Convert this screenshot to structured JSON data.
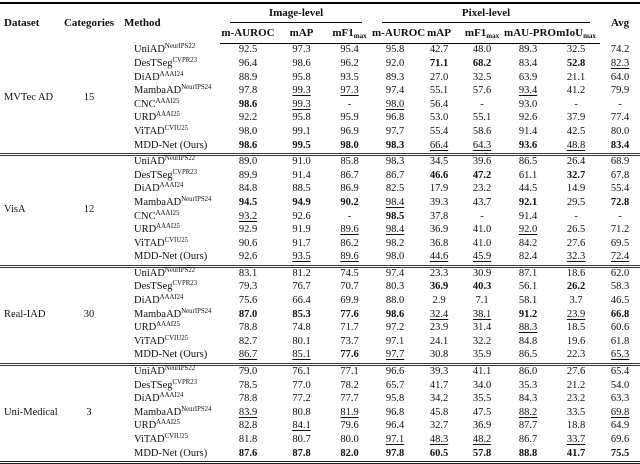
{
  "header": {
    "dataset": "Dataset",
    "categories": "Categories",
    "method": "Method",
    "avg": "Avg",
    "groups": [
      {
        "label": "Image-level"
      },
      {
        "label": "Pixel-level"
      }
    ],
    "sub": [
      {
        "base": "m-AUROC",
        "sub": ""
      },
      {
        "base": "mAP",
        "sub": ""
      },
      {
        "base": "mF1",
        "sub": "max"
      },
      {
        "base": "m-AUROC",
        "sub": ""
      },
      {
        "base": "mAP",
        "sub": ""
      },
      {
        "base": "mF1",
        "sub": "max"
      },
      {
        "base": "mAU-PRO",
        "sub": ""
      },
      {
        "base": "mIoU",
        "sub": "max"
      }
    ]
  },
  "legend": {
    "bold_means": "best result",
    "underline_means": "second-best result"
  },
  "sections": [
    {
      "dataset": "MVTec AD",
      "categories": "15",
      "rows": [
        {
          "method": "UniAD",
          "venue": "NeurIPS22",
          "cells": [
            "92.5",
            "97.3",
            "95.4",
            "95.8",
            "42.7",
            "48.0",
            "89.3",
            "32.5",
            "74.2"
          ]
        },
        {
          "method": "DesTSeg",
          "venue": "CVPR23",
          "cells": [
            "96.4",
            "98.6",
            "96.2",
            "92.0",
            "b:71.1",
            "b:68.2",
            "83.4",
            "b:52.8",
            "u:82.3"
          ]
        },
        {
          "method": "DiAD",
          "venue": "AAAI24",
          "cells": [
            "88.9",
            "95.8",
            "93.5",
            "89.3",
            "27.0",
            "32.5",
            "63.9",
            "21.1",
            "64.0"
          ]
        },
        {
          "method": "MambaAD",
          "venue": "NeurIPS24",
          "cells": [
            "97.8",
            "u:99.3",
            "u:97.3",
            "97.4",
            "55.1",
            "57.6",
            "u:93.4",
            "41.2",
            "79.9"
          ]
        },
        {
          "method": "CNC",
          "venue": "AAAI25",
          "cells": [
            "b:98.6",
            "u:99.3",
            "-",
            "u:98.0",
            "56.4",
            "-",
            "93.0",
            "-",
            "-"
          ]
        },
        {
          "method": "URD",
          "venue": "AAAI25",
          "cells": [
            "92.2",
            "95.8",
            "95.9",
            "96.8",
            "53.0",
            "55.1",
            "92.6",
            "37.9",
            "77.4"
          ]
        },
        {
          "method": "ViTAD",
          "venue": "CVIU25",
          "cells": [
            "98.0",
            "99.1",
            "96.9",
            "97.7",
            "55.4",
            "58.6",
            "91.4",
            "42.5",
            "80.0"
          ]
        },
        {
          "method": "MDD-Net (Ours)",
          "venue": "",
          "cells": [
            "b:98.6",
            "b:99.5",
            "b:98.0",
            "b:98.3",
            "u:66.4",
            "u:64.3",
            "b:93.6",
            "u:48.8",
            "b:83.4"
          ]
        }
      ]
    },
    {
      "dataset": "VisA",
      "categories": "12",
      "rows": [
        {
          "method": "UniAD",
          "venue": "NeurIPS22",
          "cells": [
            "89.0",
            "91.0",
            "85.8",
            "98.3",
            "34.5",
            "39.6",
            "86.5",
            "26.4",
            "68.9"
          ]
        },
        {
          "method": "DesTSeg",
          "venue": "CVPR23",
          "cells": [
            "89.9",
            "91.4",
            "86.7",
            "86.7",
            "b:46.6",
            "b:47.2",
            "61.1",
            "b:32.7",
            "67.8"
          ]
        },
        {
          "method": "DiAD",
          "venue": "AAAI24",
          "cells": [
            "84.8",
            "88.5",
            "86.9",
            "82.5",
            "17.9",
            "23.2",
            "44.5",
            "14.9",
            "55.4"
          ]
        },
        {
          "method": "MambaAD",
          "venue": "NeurIPS24",
          "cells": [
            "b:94.5",
            "b:94.9",
            "b:90.2",
            "u:98.4",
            "39.3",
            "43.7",
            "b:92.1",
            "29.5",
            "b:72.8"
          ]
        },
        {
          "method": "CNC",
          "venue": "AAAI25",
          "cells": [
            "u:93.2",
            "92.6",
            "-",
            "b:98.5",
            "37.8",
            "-",
            "91.4",
            "-",
            "-"
          ]
        },
        {
          "method": "URD",
          "venue": "AAAI25",
          "cells": [
            "92.9",
            "91.9",
            "u:89.6",
            "u:98.4",
            "36.9",
            "41.0",
            "u:92.0",
            "26.5",
            "71.2"
          ]
        },
        {
          "method": "ViTAD",
          "venue": "CVIU25",
          "cells": [
            "90.6",
            "91.7",
            "86.2",
            "98.2",
            "36.8",
            "41.0",
            "84.2",
            "27.6",
            "69.5"
          ]
        },
        {
          "method": "MDD-Net (Ours)",
          "venue": "",
          "cells": [
            "92.6",
            "u:93.5",
            "u:89.6",
            "98.0",
            "u:44.6",
            "u:45.9",
            "82.4",
            "u:32.3",
            "u:72.4"
          ]
        }
      ]
    },
    {
      "dataset": "Real-IAD",
      "categories": "30",
      "rows": [
        {
          "method": "UniAD",
          "venue": "NeurIPS22",
          "cells": [
            "83.1",
            "81.2",
            "74.5",
            "97.4",
            "23.3",
            "30.9",
            "87.1",
            "18.6",
            "62.0"
          ]
        },
        {
          "method": "DesTSeg",
          "venue": "CVPR23",
          "cells": [
            "79.3",
            "76.7",
            "70.7",
            "80.3",
            "b:36.9",
            "b:40.3",
            "56.1",
            "b:26.2",
            "58.3"
          ]
        },
        {
          "method": "DiAD",
          "venue": "AAAI24",
          "cells": [
            "75.6",
            "66.4",
            "69.9",
            "88.0",
            "2.9",
            "7.1",
            "58.1",
            "3.7",
            "46.5"
          ]
        },
        {
          "method": "MambaAD",
          "venue": "NeurIPS24",
          "cells": [
            "b:87.0",
            "b:85.3",
            "b:77.6",
            "b:98.6",
            "u:32.4",
            "u:38.1",
            "b:91.2",
            "u:23.9",
            "b:66.8"
          ]
        },
        {
          "method": "URD",
          "venue": "AAAI25",
          "cells": [
            "78.8",
            "74.8",
            "71.7",
            "97.2",
            "23.9",
            "31.4",
            "u:88.3",
            "18.5",
            "60.6"
          ]
        },
        {
          "method": "ViTAD",
          "venue": "CVIU25",
          "cells": [
            "82.7",
            "80.1",
            "73.7",
            "97.1",
            "24.1",
            "32.2",
            "84.8",
            "19.6",
            "61.8"
          ]
        },
        {
          "method": "MDD-Net (Ours)",
          "venue": "",
          "cells": [
            "u:86.7",
            "u:85.1",
            "b:77.6",
            "u:97.7",
            "30.8",
            "35.9",
            "86.5",
            "22.3",
            "u:65.3"
          ]
        }
      ]
    },
    {
      "dataset": "Uni-Medical",
      "categories": "3",
      "rows": [
        {
          "method": "UniAD",
          "venue": "NeurIPS22",
          "cells": [
            "79.0",
            "76.1",
            "77.1",
            "96.6",
            "39.3",
            "41.1",
            "86.0",
            "27.6",
            "65.4"
          ]
        },
        {
          "method": "DesTSeg",
          "venue": "CVPR23",
          "cells": [
            "78.5",
            "77.0",
            "78.2",
            "65.7",
            "41.7",
            "34.0",
            "35.3",
            "21.2",
            "54.0"
          ]
        },
        {
          "method": "DiAD",
          "venue": "AAAI24",
          "cells": [
            "78.8",
            "77.2",
            "77.7",
            "95.8",
            "34.2",
            "35.5",
            "84.3",
            "23.2",
            "63.3"
          ]
        },
        {
          "method": "MambaAD",
          "venue": "NeurIPS24",
          "cells": [
            "u:83.9",
            "80.8",
            "u:81.9",
            "96.8",
            "45.8",
            "47.5",
            "u:88.2",
            "33.5",
            "u:69.8"
          ]
        },
        {
          "method": "URD",
          "venue": "AAAI25",
          "cells": [
            "82.8",
            "u:84.1",
            "79.6",
            "96.4",
            "32.7",
            "36.9",
            "87.7",
            "18.8",
            "64.9"
          ]
        },
        {
          "method": "ViTAD",
          "venue": "CVIU25",
          "cells": [
            "81.8",
            "80.7",
            "80.0",
            "u:97.1",
            "u:48.3",
            "u:48.2",
            "86.7",
            "u:33.7",
            "69.6"
          ]
        },
        {
          "method": "MDD-Net (Ours)",
          "venue": "",
          "cells": [
            "b:87.6",
            "b:87.8",
            "b:82.0",
            "b:97.8",
            "b:60.5",
            "b:57.8",
            "b:88.8",
            "b:41.7",
            "b:75.5"
          ]
        }
      ]
    }
  ]
}
